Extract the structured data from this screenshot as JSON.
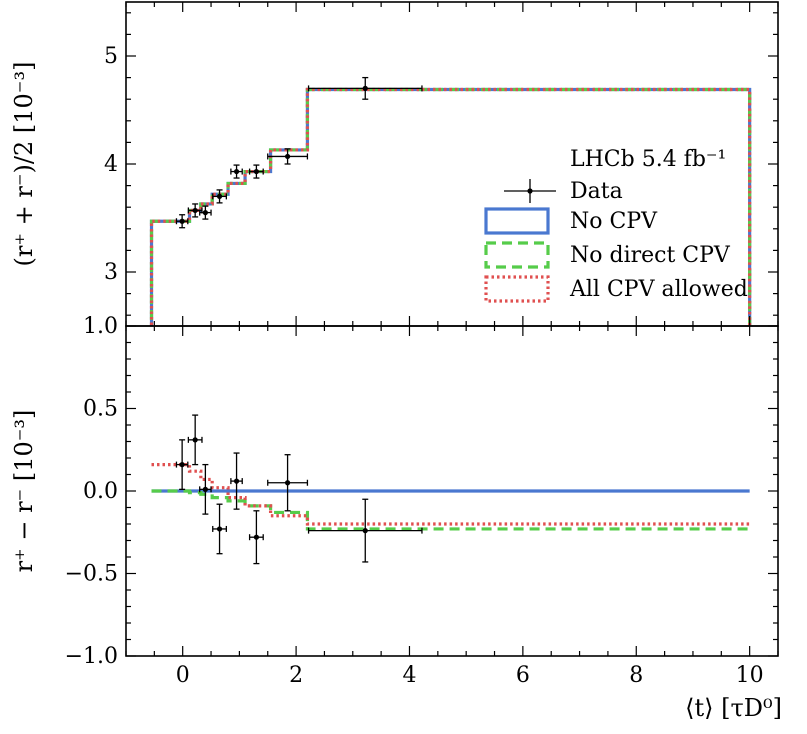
{
  "chart_data": [
    {
      "type": "line",
      "panel": "top",
      "ylabel": "(r⁺ + r⁻)/2 [10⁻³]",
      "xlim": [
        -1.0,
        10.5
      ],
      "ylim": [
        2.5,
        5.5
      ],
      "yticks": [
        3,
        4,
        5
      ],
      "ytick_labels": [
        "3",
        "4",
        "5"
      ],
      "grid": false,
      "legend_position": "right",
      "legend_title": "LHCb 5.4 fb⁻¹",
      "data_points": {
        "name": "Data",
        "x": [
          -0.01,
          0.22,
          0.4,
          0.65,
          0.95,
          1.3,
          1.85,
          3.22
        ],
        "y": [
          3.47,
          3.57,
          3.55,
          3.7,
          3.93,
          3.93,
          4.07,
          4.7
        ],
        "xerr": [
          0.1,
          0.12,
          0.1,
          0.12,
          0.1,
          0.12,
          0.35,
          1.0
        ],
        "yerr": [
          0.06,
          0.06,
          0.06,
          0.06,
          0.06,
          0.06,
          0.07,
          0.1
        ]
      },
      "bin_edges": [
        -0.55,
        0.12,
        0.32,
        0.52,
        0.8,
        1.1,
        1.55,
        2.2,
        10.0
      ],
      "model_values": [
        3.47,
        3.57,
        3.63,
        3.72,
        3.82,
        3.93,
        4.13,
        4.69
      ],
      "series": [
        {
          "name": "No CPV",
          "style": "solid",
          "color": "#4a78d0"
        },
        {
          "name": "No direct CPV",
          "style": "dashed",
          "color": "#56cc4a"
        },
        {
          "name": "All CPV allowed",
          "style": "dotted",
          "color": "#e05050"
        }
      ]
    },
    {
      "type": "line",
      "panel": "bottom",
      "xlabel": "⟨t⟩ [τD⁰]",
      "ylabel": "r⁺ − r⁻ [10⁻³]",
      "xlim": [
        -1.0,
        10.5
      ],
      "ylim": [
        -1.0,
        1.0
      ],
      "xticks": [
        0,
        2,
        4,
        6,
        8,
        10
      ],
      "xtick_labels": [
        "0",
        "2",
        "4",
        "6",
        "8",
        "10"
      ],
      "yticks": [
        -1.0,
        -0.5,
        0.0,
        0.5,
        1.0
      ],
      "ytick_labels": [
        "−1.0",
        "−0.5",
        "0.0",
        "0.5",
        "1.0"
      ],
      "grid": false,
      "data_points": {
        "name": "Data",
        "x": [
          -0.01,
          0.22,
          0.4,
          0.65,
          0.95,
          1.3,
          1.85,
          3.22
        ],
        "y": [
          0.16,
          0.31,
          0.01,
          -0.23,
          0.06,
          -0.28,
          0.05,
          -0.24
        ],
        "xerr": [
          0.1,
          0.12,
          0.1,
          0.12,
          0.1,
          0.12,
          0.35,
          1.0
        ],
        "yerr": [
          0.15,
          0.15,
          0.15,
          0.15,
          0.17,
          0.16,
          0.17,
          0.19
        ]
      },
      "bin_edges": [
        -0.55,
        0.12,
        0.32,
        0.52,
        0.8,
        1.1,
        1.55,
        2.2,
        10.0
      ],
      "series": [
        {
          "name": "No CPV",
          "style": "solid",
          "color": "#4a78d0",
          "values": [
            0.0,
            0.0,
            0.0,
            0.0,
            0.0,
            0.0,
            0.0,
            0.0
          ]
        },
        {
          "name": "No direct CPV",
          "style": "dashed",
          "color": "#56cc4a",
          "values": [
            0.0,
            -0.01,
            -0.02,
            -0.04,
            -0.06,
            -0.09,
            -0.13,
            -0.23
          ]
        },
        {
          "name": "All CPV allowed",
          "style": "dotted",
          "color": "#e05050",
          "values": [
            0.16,
            0.12,
            0.07,
            0.02,
            -0.04,
            -0.09,
            -0.15,
            -0.2
          ]
        }
      ]
    }
  ]
}
